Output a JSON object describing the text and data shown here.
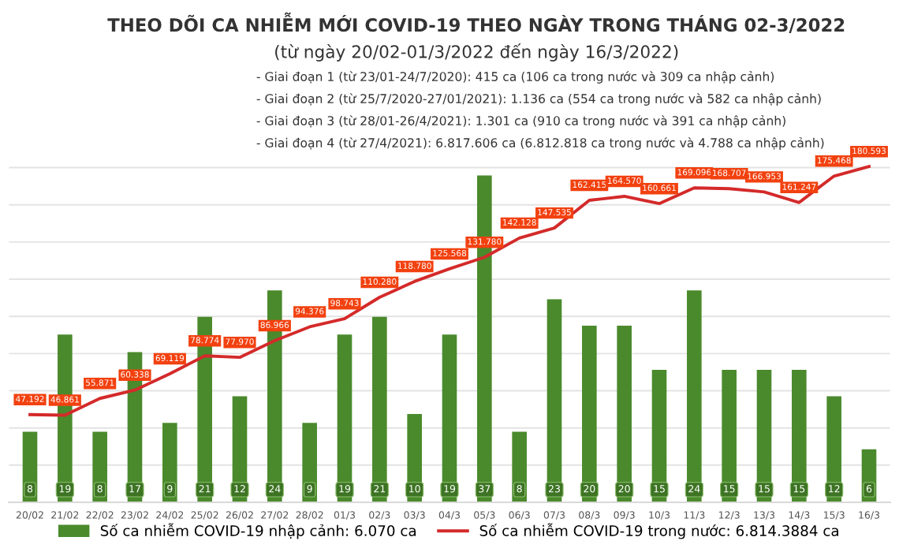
{
  "chart_data": {
    "type": "bar",
    "title": "THEO DÕI CA NHIỄM MỚI COVID-19 THEO NGÀY TRONG THÁNG 02-3/2022",
    "subtitle": "(từ ngày 20/02-01/3/2022 đến ngày 16/3/2022)",
    "annotations": [
      "- Giai đoạn 1 (từ 23/01-24/7/2020): 415 ca (106 ca trong nước và 309 ca nhập cảnh)",
      "- Giai đoạn 2 (từ 25/7/2020-27/01/2021): 1.136 ca (554 ca trong nước và 582 ca nhập cảnh)",
      "- Giai đoạn 3 (từ 28/01-26/4/2021): 1.301 ca (910 ca trong nước và 391 ca nhập cảnh)",
      "- Giai đoạn 4 (từ 27/4/2021): 6.817.606 ca (6.812.818 ca trong nước và 4.788 ca nhập cảnh)"
    ],
    "categories": [
      "20/02",
      "21/02",
      "22/02",
      "23/02",
      "24/02",
      "25/02",
      "26/02",
      "27/02",
      "28/02",
      "01/3",
      "02/3",
      "03/3",
      "04/3",
      "05/3",
      "06/3",
      "07/3",
      "08/3",
      "09/3",
      "10/3",
      "11/3",
      "12/3",
      "13/3",
      "14/3",
      "15/3",
      "16/3"
    ],
    "series": [
      {
        "name": "Số ca nhiễm COVID-19 nhập cảnh: 6.070 ca",
        "color": "#4a8a2c",
        "values": [
          8,
          19,
          8,
          17,
          9,
          21,
          12,
          24,
          9,
          19,
          21,
          10,
          19,
          37,
          8,
          23,
          20,
          20,
          15,
          24,
          15,
          15,
          15,
          12,
          6
        ]
      },
      {
        "name": "Số ca nhiễm COVID-19 trong nước: 6.814.3884 ca",
        "type": "line",
        "axis": "y2",
        "color": "#d42a2a",
        "values": [
          47192,
          46861,
          55871,
          60338,
          69119,
          78774,
          77970,
          86966,
          94376,
          98743,
          110280,
          118780,
          125568,
          131780,
          142128,
          147535,
          162415,
          164570,
          160661,
          169096,
          168707,
          166953,
          161247,
          175468,
          180593
        ],
        "value_labels": [
          "47.192",
          "46.861",
          "55.871",
          "60.338",
          "69.119",
          "78.774",
          "77.970",
          "86.966",
          "94.376",
          "98.743",
          "110.280",
          "118.780",
          "125.568",
          "131.780",
          "142.128",
          "147.535",
          "162.415",
          "164.570",
          "160.661",
          "169.096",
          "168.707",
          "166.953",
          "161.247",
          "175.468",
          "180.593"
        ]
      }
    ],
    "data_labels": true,
    "ylim": [
      0,
      40
    ],
    "y2lim": [
      0,
      190000
    ],
    "y2ticks": [
      {
        "value": 0,
        "label": null
      },
      {
        "value": 20000,
        "label": null
      },
      {
        "value": 40000,
        "label": null
      },
      {
        "value": 60000,
        "label": null
      },
      {
        "value": 80000,
        "label": null
      },
      {
        "value": 100000,
        "label": null
      },
      {
        "value": 120000,
        "label": null
      },
      {
        "value": 140000,
        "label": null
      },
      {
        "value": 160000,
        "label": null
      },
      {
        "value": 180000,
        "label": null
      }
    ],
    "tick_labels": "x",
    "grid": "y",
    "legend": "bottom",
    "marker": "none",
    "line_style": "solid"
  }
}
